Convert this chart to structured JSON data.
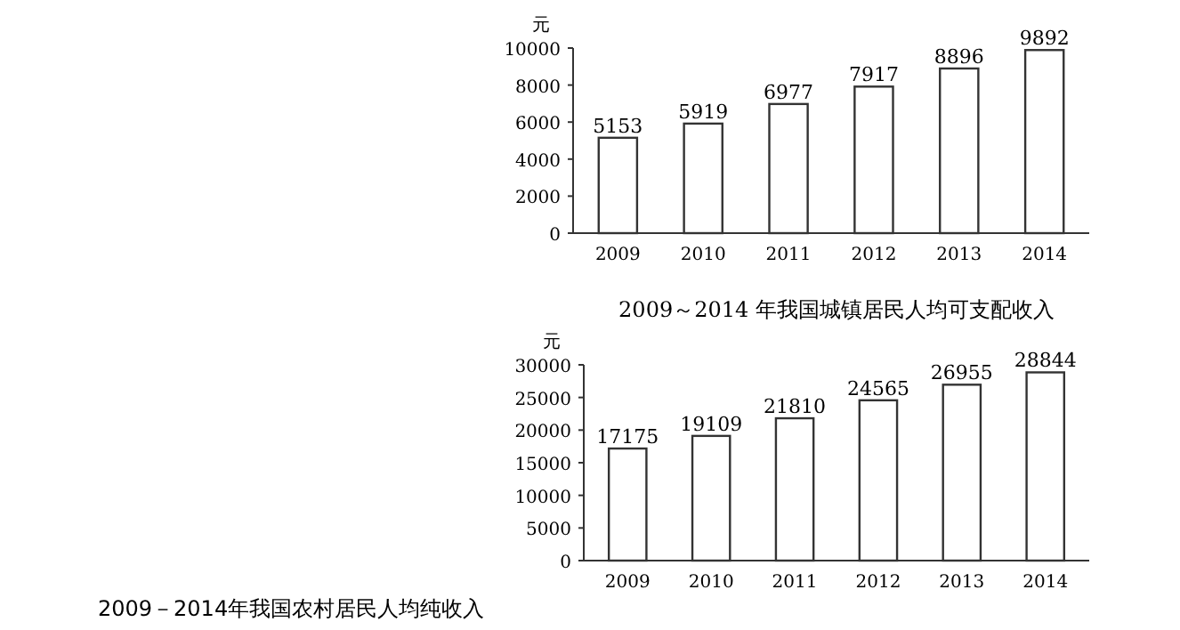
{
  "chart_data": [
    {
      "type": "bar",
      "ylabel": "元",
      "categories": [
        "2009",
        "2010",
        "2011",
        "2012",
        "2013",
        "2014"
      ],
      "values": [
        5153,
        5919,
        6977,
        7917,
        8896,
        9892
      ],
      "color": "#ffffff",
      "ylim": [
        0,
        10000
      ],
      "yticks": [
        0,
        2000,
        4000,
        6000,
        8000,
        10000
      ],
      "data_labels": true,
      "annotations": [
        "2009－2014年我国农村居民人均纯收入"
      ]
    },
    {
      "type": "bar",
      "title": "2009～2014 年我国城镇居民人均可支配收入",
      "ylabel": "元",
      "categories": [
        "2009",
        "2010",
        "2011",
        "2012",
        "2013",
        "2014"
      ],
      "values": [
        17175,
        19109,
        21810,
        24565,
        26955,
        28844
      ],
      "color": "#ffffff",
      "ylim": [
        0,
        30000
      ],
      "yticks": [
        0,
        5000,
        10000,
        15000,
        20000,
        25000,
        30000
      ],
      "data_labels": true
    }
  ]
}
